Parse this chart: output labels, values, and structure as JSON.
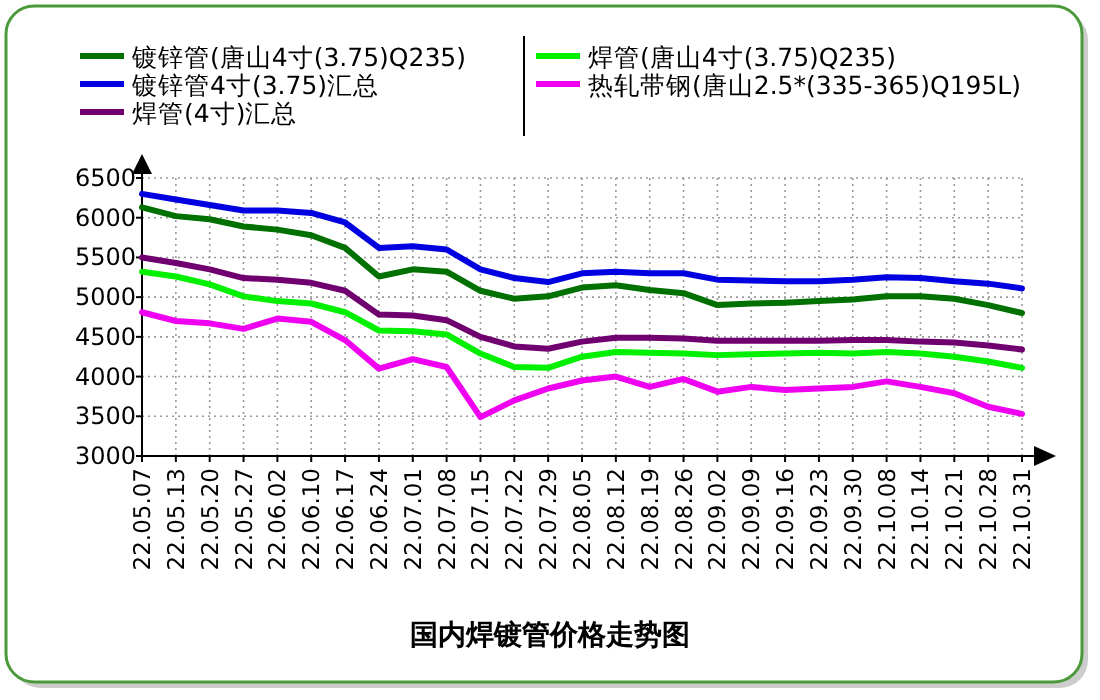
{
  "chart_data": {
    "type": "line",
    "title": "国内焊镀管价格走势图",
    "categories": [
      "22.05.07",
      "22.05.13",
      "22.05.20",
      "22.05.27",
      "22.06.02",
      "22.06.10",
      "22.06.17",
      "22.06.24",
      "22.07.01",
      "22.07.08",
      "22.07.15",
      "22.07.22",
      "22.07.29",
      "22.08.05",
      "22.08.12",
      "22.08.19",
      "22.08.26",
      "22.09.02",
      "22.09.09",
      "22.09.16",
      "22.09.23",
      "22.09.30",
      "22.10.08",
      "22.10.14",
      "22.10.21",
      "22.10.28",
      "22.10.31"
    ],
    "series": [
      {
        "name": "镀锌管(唐山4寸(3.75)Q235)",
        "color": "#007000",
        "values": [
          6130,
          6020,
          5980,
          5890,
          5850,
          5780,
          5620,
          5260,
          5350,
          5320,
          5080,
          4980,
          5010,
          5120,
          5150,
          5090,
          5050,
          4900,
          4920,
          4930,
          4950,
          4970,
          5010,
          5010,
          4980,
          4900,
          4800
        ]
      },
      {
        "name": "镀锌管4寸(3.75)汇总",
        "color": "#0000e0",
        "values": [
          6300,
          6230,
          6160,
          6090,
          6090,
          6060,
          5940,
          5620,
          5640,
          5600,
          5350,
          5240,
          5190,
          5300,
          5320,
          5300,
          5300,
          5220,
          5210,
          5200,
          5200,
          5220,
          5250,
          5240,
          5200,
          5170,
          5110
        ]
      },
      {
        "name": "焊管(4寸)汇总",
        "color": "#700070",
        "values": [
          5500,
          5430,
          5350,
          5240,
          5220,
          5180,
          5080,
          4780,
          4770,
          4710,
          4500,
          4380,
          4350,
          4440,
          4490,
          4490,
          4480,
          4450,
          4450,
          4450,
          4450,
          4460,
          4460,
          4440,
          4430,
          4390,
          4340
        ]
      },
      {
        "name": "焊管(唐山4寸(3.75)Q235)",
        "color": "#00f000",
        "values": [
          5320,
          5260,
          5160,
          5010,
          4950,
          4920,
          4810,
          4580,
          4570,
          4530,
          4290,
          4120,
          4110,
          4250,
          4310,
          4300,
          4290,
          4270,
          4280,
          4290,
          4300,
          4290,
          4310,
          4290,
          4250,
          4190,
          4110
        ]
      },
      {
        "name": "热轧带钢(唐山2.5*(335-365)Q195L)",
        "color": "#f000f0",
        "values": [
          4810,
          4700,
          4670,
          4600,
          4730,
          4690,
          4460,
          4100,
          4220,
          4120,
          3490,
          3700,
          3850,
          3950,
          4000,
          3870,
          3970,
          3810,
          3870,
          3830,
          3850,
          3870,
          3940,
          3870,
          3790,
          3620,
          3530
        ]
      }
    ],
    "ylim": [
      3000,
      6500
    ],
    "yticks": [
      3000,
      3500,
      4000,
      4500,
      5000,
      5500,
      6000,
      6500
    ],
    "grid": true,
    "legend": "top"
  }
}
